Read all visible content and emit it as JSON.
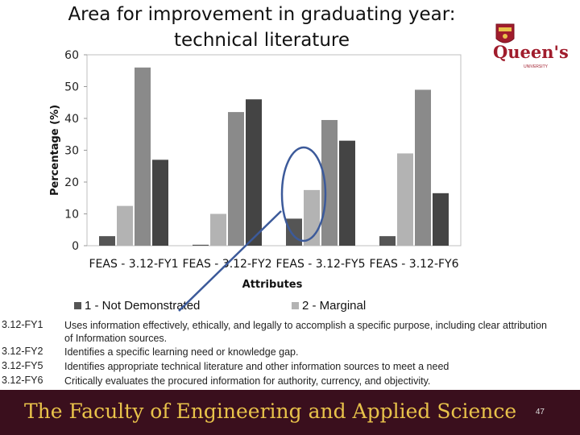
{
  "chart_data": {
    "type": "bar",
    "title": "Area for improvement in graduating year: technical literature",
    "xlabel": "Attributes",
    "ylabel": "Percentage (%)",
    "ylim": [
      0,
      60
    ],
    "yticks": [
      0,
      10,
      20,
      30,
      40,
      50,
      60
    ],
    "categories": [
      "FEAS - 3.12-FY1",
      "FEAS - 3.12-FY2",
      "FEAS - 3.12-FY5",
      "FEAS - 3.12-FY6"
    ],
    "series": [
      {
        "name": "1 - Not Demonstrated",
        "color": "#555555",
        "values": [
          3,
          0.3,
          8.5,
          3
        ]
      },
      {
        "name": "2 - Marginal",
        "color": "#b3b3b3",
        "values": [
          12.5,
          10,
          17.5,
          29
        ]
      },
      {
        "name": "",
        "color": "#8a8a8a",
        "values": [
          56,
          42,
          39.5,
          49
        ]
      },
      {
        "name": "",
        "color": "#444444",
        "values": [
          27,
          46,
          33,
          16.5
        ]
      }
    ],
    "grid": false,
    "legend_position": "bottom"
  },
  "logo": {
    "text": "Queen's",
    "subtext": "UNIVERSITY"
  },
  "descriptions": [
    {
      "code": "3.12-FY1",
      "text": "Uses information effectively, ethically, and legally to accomplish a specific purpose, including clear attribution of Information sources."
    },
    {
      "code": "3.12-FY2",
      "text": "Identifies a specific learning need or knowledge gap."
    },
    {
      "code": "3.12-FY5",
      "text": "Identifies appropriate technical literature and other information sources to meet a need"
    },
    {
      "code": "3.12-FY6",
      "text": "Critically evaluates the procured information for authority, currency, and objectivity."
    }
  ],
  "footer": {
    "text": "The Faculty of Engineering and Applied Science",
    "page_number": "47"
  },
  "colors": {
    "footer_bg": "#3a0f1d",
    "footer_text": "#e8c24a",
    "annotation": "#3c5a9a"
  }
}
